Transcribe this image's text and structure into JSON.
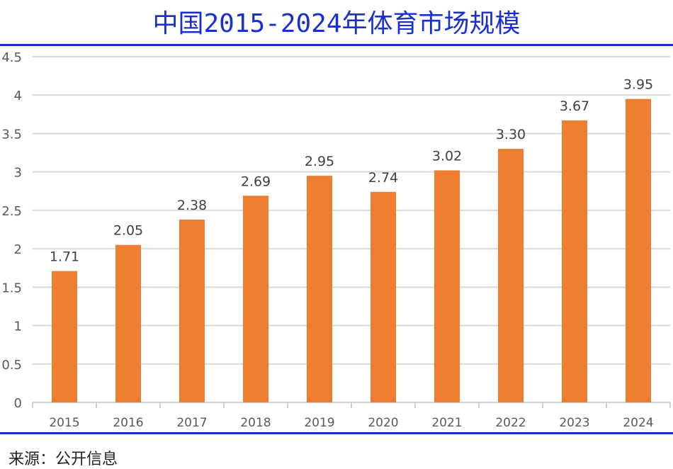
{
  "title": "中国2015-2024年体育市场规模",
  "source": "来源：公开信息",
  "colors": {
    "bar": "#ed7d31",
    "title": "#1a2fd0",
    "rule": "#1133cc",
    "grid": "#d9d9d9"
  },
  "chart_data": {
    "type": "bar",
    "title": "中国2015-2024年体育市场规模",
    "categories": [
      "2015",
      "2016",
      "2017",
      "2018",
      "2019",
      "2020",
      "2021",
      "2022",
      "2023",
      "2024"
    ],
    "values": [
      1.71,
      2.05,
      2.38,
      2.69,
      2.95,
      2.74,
      3.02,
      3.3,
      3.67,
      3.95
    ],
    "data_labels": [
      "1.71",
      "2.05",
      "2.38",
      "2.69",
      "2.95",
      "2.74",
      "3.02",
      "3.30",
      "3.67",
      "3.95"
    ],
    "yticks": [
      "0",
      "0.5",
      "1",
      "1.5",
      "2",
      "2.5",
      "3",
      "3.5",
      "4",
      "4.5"
    ],
    "ylim": [
      0,
      4.5
    ],
    "grid": true,
    "xlabel": "",
    "ylabel": ""
  }
}
